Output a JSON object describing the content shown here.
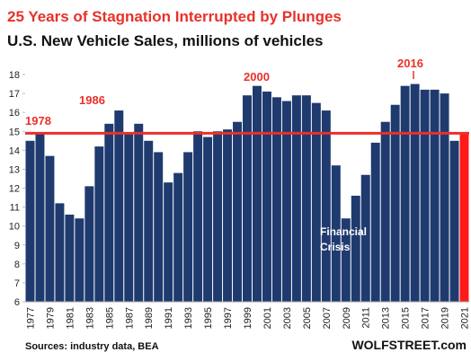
{
  "chart_data": {
    "type": "bar",
    "title": "25 Years of Stagnation Interrupted by Plunges",
    "subtitle": "U.S. New Vehicle Sales, millions of vehicles",
    "categories": [
      "1977",
      null,
      "1979",
      null,
      "1981",
      null,
      "1983",
      null,
      "1985",
      null,
      "1987",
      null,
      "1989",
      null,
      "1991",
      null,
      "1993",
      null,
      "1995",
      null,
      "1997",
      null,
      "1999",
      null,
      "2001",
      null,
      "2003",
      null,
      "2005",
      null,
      "2007",
      null,
      "2009",
      null,
      "2011",
      null,
      "2013",
      null,
      "2015",
      null,
      "2017",
      null,
      "2019",
      null,
      "2021"
    ],
    "values": [
      14.5,
      14.9,
      13.7,
      11.2,
      10.6,
      10.4,
      12.1,
      14.2,
      15.4,
      16.1,
      14.9,
      15.4,
      14.5,
      13.9,
      12.3,
      12.8,
      13.9,
      15.0,
      14.7,
      15.0,
      15.1,
      15.5,
      16.9,
      17.4,
      17.1,
      16.8,
      16.6,
      16.9,
      16.9,
      16.5,
      16.1,
      13.2,
      10.4,
      11.6,
      12.7,
      14.4,
      15.5,
      16.4,
      17.4,
      17.5,
      17.2,
      17.2,
      17.0,
      14.5,
      14.9
    ],
    "colors": [
      "#1f3a6e",
      "#1f3a6e",
      "#1f3a6e",
      "#1f3a6e",
      "#1f3a6e",
      "#1f3a6e",
      "#1f3a6e",
      "#1f3a6e",
      "#1f3a6e",
      "#1f3a6e",
      "#1f3a6e",
      "#1f3a6e",
      "#1f3a6e",
      "#1f3a6e",
      "#1f3a6e",
      "#1f3a6e",
      "#1f3a6e",
      "#1f3a6e",
      "#1f3a6e",
      "#1f3a6e",
      "#1f3a6e",
      "#1f3a6e",
      "#1f3a6e",
      "#1f3a6e",
      "#1f3a6e",
      "#1f3a6e",
      "#1f3a6e",
      "#1f3a6e",
      "#1f3a6e",
      "#1f3a6e",
      "#1f3a6e",
      "#1f3a6e",
      "#1f3a6e",
      "#1f3a6e",
      "#1f3a6e",
      "#1f3a6e",
      "#1f3a6e",
      "#1f3a6e",
      "#1f3a6e",
      "#1f3a6e",
      "#1f3a6e",
      "#1f3a6e",
      "#1f3a6e",
      "#1f3a6e",
      "#ff1a1a"
    ],
    "reference_line": 14.9,
    "reference_color": "#e8312a",
    "ylim": [
      6,
      18
    ],
    "yticks": [
      6,
      7,
      8,
      9,
      10,
      11,
      12,
      13,
      14,
      15,
      16,
      17,
      18
    ],
    "annotations": [
      "1978",
      "1986",
      "2000",
      "2016",
      "Financial",
      "Crisis"
    ],
    "source": "Sources: industry data, BEA",
    "brand": "WOLFSTREET.com"
  }
}
